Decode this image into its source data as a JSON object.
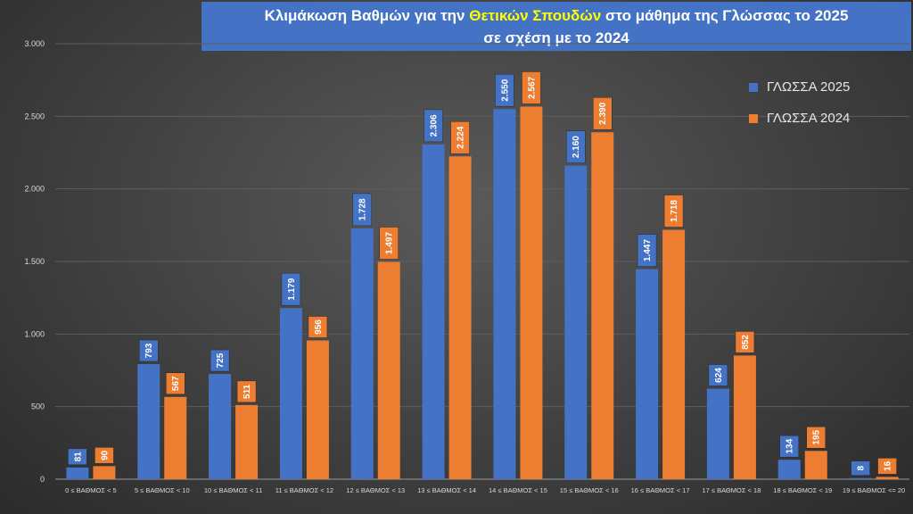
{
  "title": {
    "line1_prefix": "Κλιμάκωση Βαθμών για την ",
    "line1_highlight": "Θετικών Σπουδών",
    "line1_suffix": " στο μάθημα της Γλώσσας το 2025",
    "line2": "σε σχέση με το 2024"
  },
  "colors": {
    "series_2025": "#4472c4",
    "series_2024": "#ed7d31",
    "title_bg": "#4472c4",
    "title_highlight": "#ffff00"
  },
  "legend": {
    "placement": "top-right",
    "items": [
      "ΓΛΩΣΣΑ 2025",
      "ΓΛΩΣΣΑ 2024"
    ]
  },
  "chart_data": {
    "type": "bar",
    "categories": [
      "0 ≤ ΒΑΘΜΟΣ < 5",
      "5 ≤ ΒΑΘΜΟΣ < 10",
      "10 ≤ ΒΑΘΜΟΣ < 11",
      "11 ≤ ΒΑΘΜΟΣ < 12",
      "12 ≤ ΒΑΘΜΟΣ < 13",
      "13 ≤ ΒΑΘΜΟΣ < 14",
      "14 ≤ ΒΑΘΜΟΣ < 15",
      "15 ≤ ΒΑΘΜΟΣ < 16",
      "16 ≤ ΒΑΘΜΟΣ < 17",
      "17 ≤ ΒΑΘΜΟΣ < 18",
      "18 ≤ ΒΑΘΜΟΣ < 19",
      "19 ≤ ΒΑΘΜΟΣ <= 20"
    ],
    "series": [
      {
        "name": "ΓΛΩΣΣΑ 2025",
        "values": [
          81,
          793,
          725,
          1179,
          1728,
          2306,
          2550,
          2160,
          1447,
          624,
          134,
          8
        ],
        "labels": [
          "81",
          "793",
          "725",
          "1.179",
          "1.728",
          "2.306",
          "2.550",
          "2.160",
          "1.447",
          "624",
          "134",
          "8"
        ]
      },
      {
        "name": "ΓΛΩΣΣΑ 2024",
        "values": [
          90,
          567,
          511,
          956,
          1497,
          2224,
          2567,
          2390,
          1718,
          852,
          195,
          16
        ],
        "labels": [
          "90",
          "567",
          "511",
          "956",
          "1.497",
          "2.224",
          "2.567",
          "2.390",
          "1.718",
          "852",
          "195",
          "16"
        ]
      }
    ],
    "yticks": [
      0,
      500,
      1000,
      1500,
      2000,
      2500,
      3000
    ],
    "ytick_labels": [
      "0",
      "500",
      "1.000",
      "1.500",
      "2.000",
      "2.500",
      "3.000"
    ],
    "ylim": [
      0,
      3000
    ],
    "grid": true,
    "xlabel": "",
    "ylabel": ""
  }
}
